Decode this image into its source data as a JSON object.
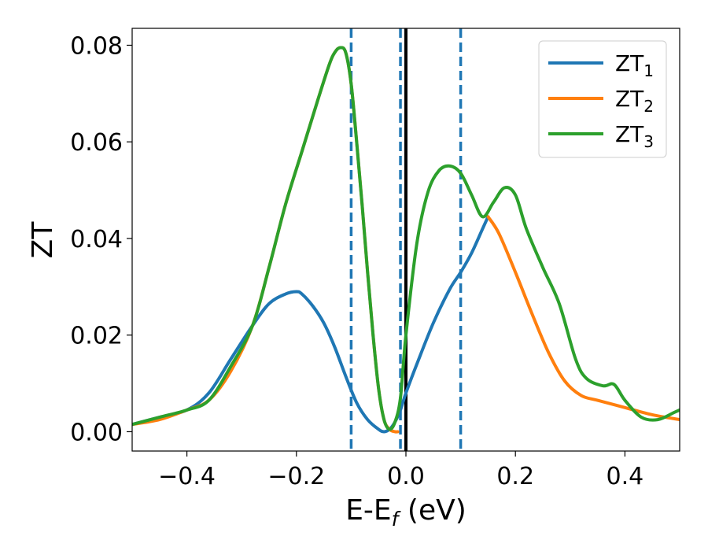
{
  "chart_data": {
    "type": "line",
    "xlabel": "E-E",
    "xlabel_sub": "f",
    "xlabel_unit": " (eV)",
    "ylabel": "ZT",
    "xlim": [
      -0.5,
      0.5
    ],
    "ylim": [
      -0.004,
      0.0835
    ],
    "x_ticks": [
      -0.4,
      -0.2,
      0.0,
      0.2,
      0.4
    ],
    "x_tick_labels": [
      "−0.4",
      "−0.2",
      "0.0",
      "0.2",
      "0.4"
    ],
    "y_ticks": [
      0.0,
      0.02,
      0.04,
      0.06,
      0.08
    ],
    "y_tick_labels": [
      "0.00",
      "0.02",
      "0.04",
      "0.06",
      "0.08"
    ],
    "grid": false,
    "legend_position": "top-right",
    "vertical_lines": [
      {
        "x": -0.1,
        "style": "dashed",
        "color": "#1f77b4"
      },
      {
        "x": -0.01,
        "style": "dashed",
        "color": "#1f77b4"
      },
      {
        "x": 0.0,
        "style": "solid",
        "color": "#000000"
      },
      {
        "x": 0.1,
        "style": "dashed",
        "color": "#1f77b4"
      }
    ],
    "series": [
      {
        "name": "ZT",
        "name_sub": "1",
        "color": "#1f77b4",
        "x": [
          -0.5,
          -0.45,
          -0.4,
          -0.36,
          -0.32,
          -0.28,
          -0.25,
          -0.22,
          -0.2,
          -0.19,
          -0.17,
          -0.15,
          -0.13,
          -0.11,
          -0.09,
          -0.07,
          -0.05,
          -0.04,
          -0.03,
          -0.02,
          -0.01,
          0.0,
          0.02,
          0.05,
          0.08,
          0.1,
          0.12,
          0.14,
          0.15
        ],
        "y": [
          0.0015,
          0.003,
          0.0045,
          0.008,
          0.015,
          0.022,
          0.0265,
          0.0285,
          0.029,
          0.0285,
          0.026,
          0.0225,
          0.0175,
          0.0115,
          0.006,
          0.0025,
          0.0005,
          0.0,
          0.0005,
          0.002,
          0.0045,
          0.008,
          0.014,
          0.0225,
          0.0295,
          0.033,
          0.037,
          0.042,
          0.0445
        ]
      },
      {
        "name": "ZT",
        "name_sub": "2",
        "color": "#ff7f0e",
        "x": [
          -0.5,
          -0.45,
          -0.4,
          -0.36,
          -0.32,
          -0.28,
          -0.25,
          -0.22,
          -0.19,
          -0.16,
          -0.14,
          -0.13,
          -0.12,
          -0.11,
          -0.1,
          -0.09,
          -0.08,
          -0.07,
          -0.06,
          -0.05,
          -0.04,
          -0.03,
          -0.02,
          -0.015,
          0.15,
          0.17,
          0.2,
          0.23,
          0.26,
          0.29,
          0.32,
          0.35,
          0.4,
          0.45,
          0.5
        ],
        "y": [
          0.0015,
          0.0025,
          0.0045,
          0.0065,
          0.0125,
          0.022,
          0.034,
          0.047,
          0.058,
          0.069,
          0.076,
          0.0785,
          0.0795,
          0.0785,
          0.072,
          0.06,
          0.047,
          0.033,
          0.02,
          0.009,
          0.0025,
          0.0005,
          0.0,
          0.0,
          0.0445,
          0.041,
          0.033,
          0.0245,
          0.0165,
          0.0105,
          0.0075,
          0.0065,
          0.005,
          0.0035,
          0.0025
        ]
      },
      {
        "name": "ZT",
        "name_sub": "3",
        "color": "#2ca02c",
        "x": [
          -0.5,
          -0.45,
          -0.4,
          -0.36,
          -0.32,
          -0.28,
          -0.25,
          -0.22,
          -0.19,
          -0.16,
          -0.14,
          -0.13,
          -0.12,
          -0.11,
          -0.1,
          -0.09,
          -0.08,
          -0.07,
          -0.06,
          -0.05,
          -0.04,
          -0.03,
          -0.02,
          -0.01,
          0.0,
          0.02,
          0.04,
          0.06,
          0.08,
          0.1,
          0.12,
          0.14,
          0.16,
          0.18,
          0.2,
          0.22,
          0.25,
          0.28,
          0.31,
          0.33,
          0.36,
          0.38,
          0.4,
          0.43,
          0.46,
          0.49,
          0.5
        ],
        "y": [
          0.0015,
          0.003,
          0.0045,
          0.0065,
          0.0135,
          0.022,
          0.034,
          0.047,
          0.058,
          0.069,
          0.076,
          0.0785,
          0.0795,
          0.0785,
          0.072,
          0.06,
          0.047,
          0.033,
          0.02,
          0.009,
          0.0025,
          0.0005,
          0.002,
          0.007,
          0.02,
          0.039,
          0.0495,
          0.054,
          0.055,
          0.0535,
          0.049,
          0.0445,
          0.0475,
          0.0505,
          0.049,
          0.042,
          0.034,
          0.0265,
          0.015,
          0.011,
          0.0095,
          0.0098,
          0.0065,
          0.003,
          0.0025,
          0.004,
          0.0045
        ]
      }
    ]
  }
}
